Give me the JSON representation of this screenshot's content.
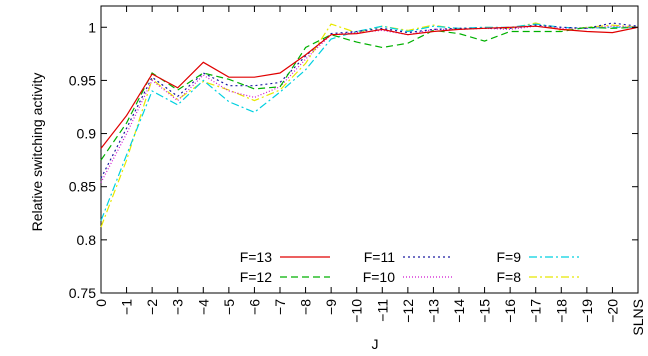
{
  "chart_data": {
    "type": "line",
    "title": "",
    "xlabel": "J",
    "ylabel": "Relative switching activity",
    "categories": [
      "0",
      "−1",
      "−2",
      "−3",
      "−4",
      "−5",
      "−6",
      "−7",
      "−8",
      "−9",
      "−10",
      "−11",
      "−12",
      "−13",
      "−14",
      "−15",
      "−16",
      "−17",
      "−18",
      "−19",
      "−20",
      "SLNS"
    ],
    "ylim": [
      0.75,
      1.02
    ],
    "yticks": [
      0.75,
      0.8,
      0.85,
      0.9,
      0.95,
      1
    ],
    "ytick_labels": [
      "0.75",
      "0.8",
      "0.85",
      "0.9",
      "0.95",
      "1"
    ],
    "grid": false,
    "legend_position": "bottom-right",
    "series": [
      {
        "name": "F=13",
        "color": "#e00000",
        "dash": "",
        "values": [
          0.886,
          0.917,
          0.956,
          0.943,
          0.967,
          0.953,
          0.953,
          0.957,
          0.974,
          0.993,
          0.994,
          0.998,
          0.993,
          0.996,
          0.998,
          0.999,
          1.0,
          1.001,
          0.998,
          0.996,
          0.995,
          1.0
        ]
      },
      {
        "name": "F=12",
        "color": "#00b000",
        "dash": "7,4",
        "values": [
          0.875,
          0.91,
          0.957,
          0.941,
          0.957,
          0.951,
          0.942,
          0.944,
          0.981,
          0.993,
          0.986,
          0.981,
          0.985,
          0.997,
          0.994,
          0.987,
          0.996,
          0.996,
          0.996,
          1.0,
          0.999,
          1.0
        ]
      },
      {
        "name": "F=11",
        "color": "#1a1aa0",
        "dash": "2,3",
        "values": [
          0.858,
          0.905,
          0.953,
          0.935,
          0.957,
          0.945,
          0.945,
          0.948,
          0.973,
          0.994,
          0.996,
          0.999,
          0.995,
          0.998,
          0.999,
          0.999,
          0.999,
          1.002,
          1.0,
          0.999,
          1.004,
          1.001
        ]
      },
      {
        "name": "F=10",
        "color": "#d010d0",
        "dash": "1,2",
        "values": [
          0.854,
          0.9,
          0.95,
          0.931,
          0.955,
          0.94,
          0.934,
          0.944,
          0.97,
          0.993,
          0.995,
          0.997,
          0.993,
          0.998,
          0.998,
          0.999,
          0.998,
          1.001,
          0.999,
          0.999,
          1.001,
          1.0
        ]
      },
      {
        "name": "F=9",
        "color": "#00d0e0",
        "dash": "8,3,2,3",
        "values": [
          0.818,
          0.88,
          0.94,
          0.927,
          0.95,
          0.93,
          0.92,
          0.939,
          0.96,
          0.989,
          0.996,
          1.001,
          0.996,
          1.001,
          0.999,
          1.0,
          1.0,
          1.003,
          1.0,
          0.999,
          1.0,
          1.0
        ]
      },
      {
        "name": "F=8",
        "color": "#e8e800",
        "dash": "8,3,2,3",
        "values": [
          0.812,
          0.875,
          0.951,
          0.932,
          0.949,
          0.941,
          0.931,
          0.941,
          0.966,
          1.003,
          0.995,
          1.001,
          0.997,
          1.002,
          0.998,
          1.0,
          0.999,
          1.004,
          0.997,
          1.0,
          1.002,
          1.0
        ]
      }
    ]
  }
}
